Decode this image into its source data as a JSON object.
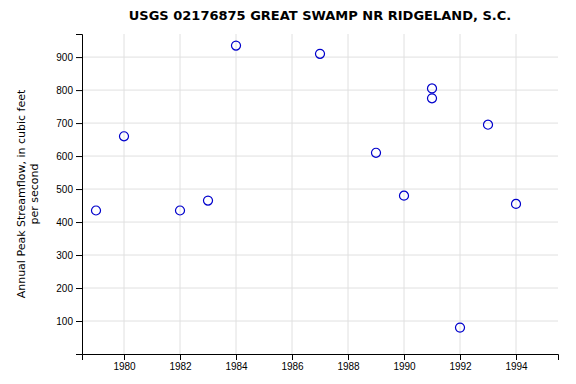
{
  "chart_data": {
    "type": "scatter",
    "title": "USGS 02176875 GREAT SWAMP NR RIDGELAND, S.C.",
    "ylabel": "Annual Peak Streamflow, in cubic feet\nper second",
    "x": [
      1979,
      1980,
      1982,
      1983,
      1984,
      1987,
      1989,
      1990,
      1991,
      1991,
      1992,
      1993,
      1994
    ],
    "values": [
      435,
      660,
      435,
      465,
      935,
      910,
      610,
      480,
      775,
      805,
      80,
      695,
      455
    ],
    "color": "#0000CC",
    "marker": "circle",
    "xlim": [
      1978.5,
      1995.5
    ],
    "ylim": [
      0,
      970
    ],
    "xticks": [
      1980,
      1982,
      1984,
      1986,
      1988,
      1990,
      1992,
      1994
    ],
    "yticks": [
      100,
      200,
      300,
      400,
      500,
      600,
      700,
      800,
      900
    ],
    "grid": true
  }
}
